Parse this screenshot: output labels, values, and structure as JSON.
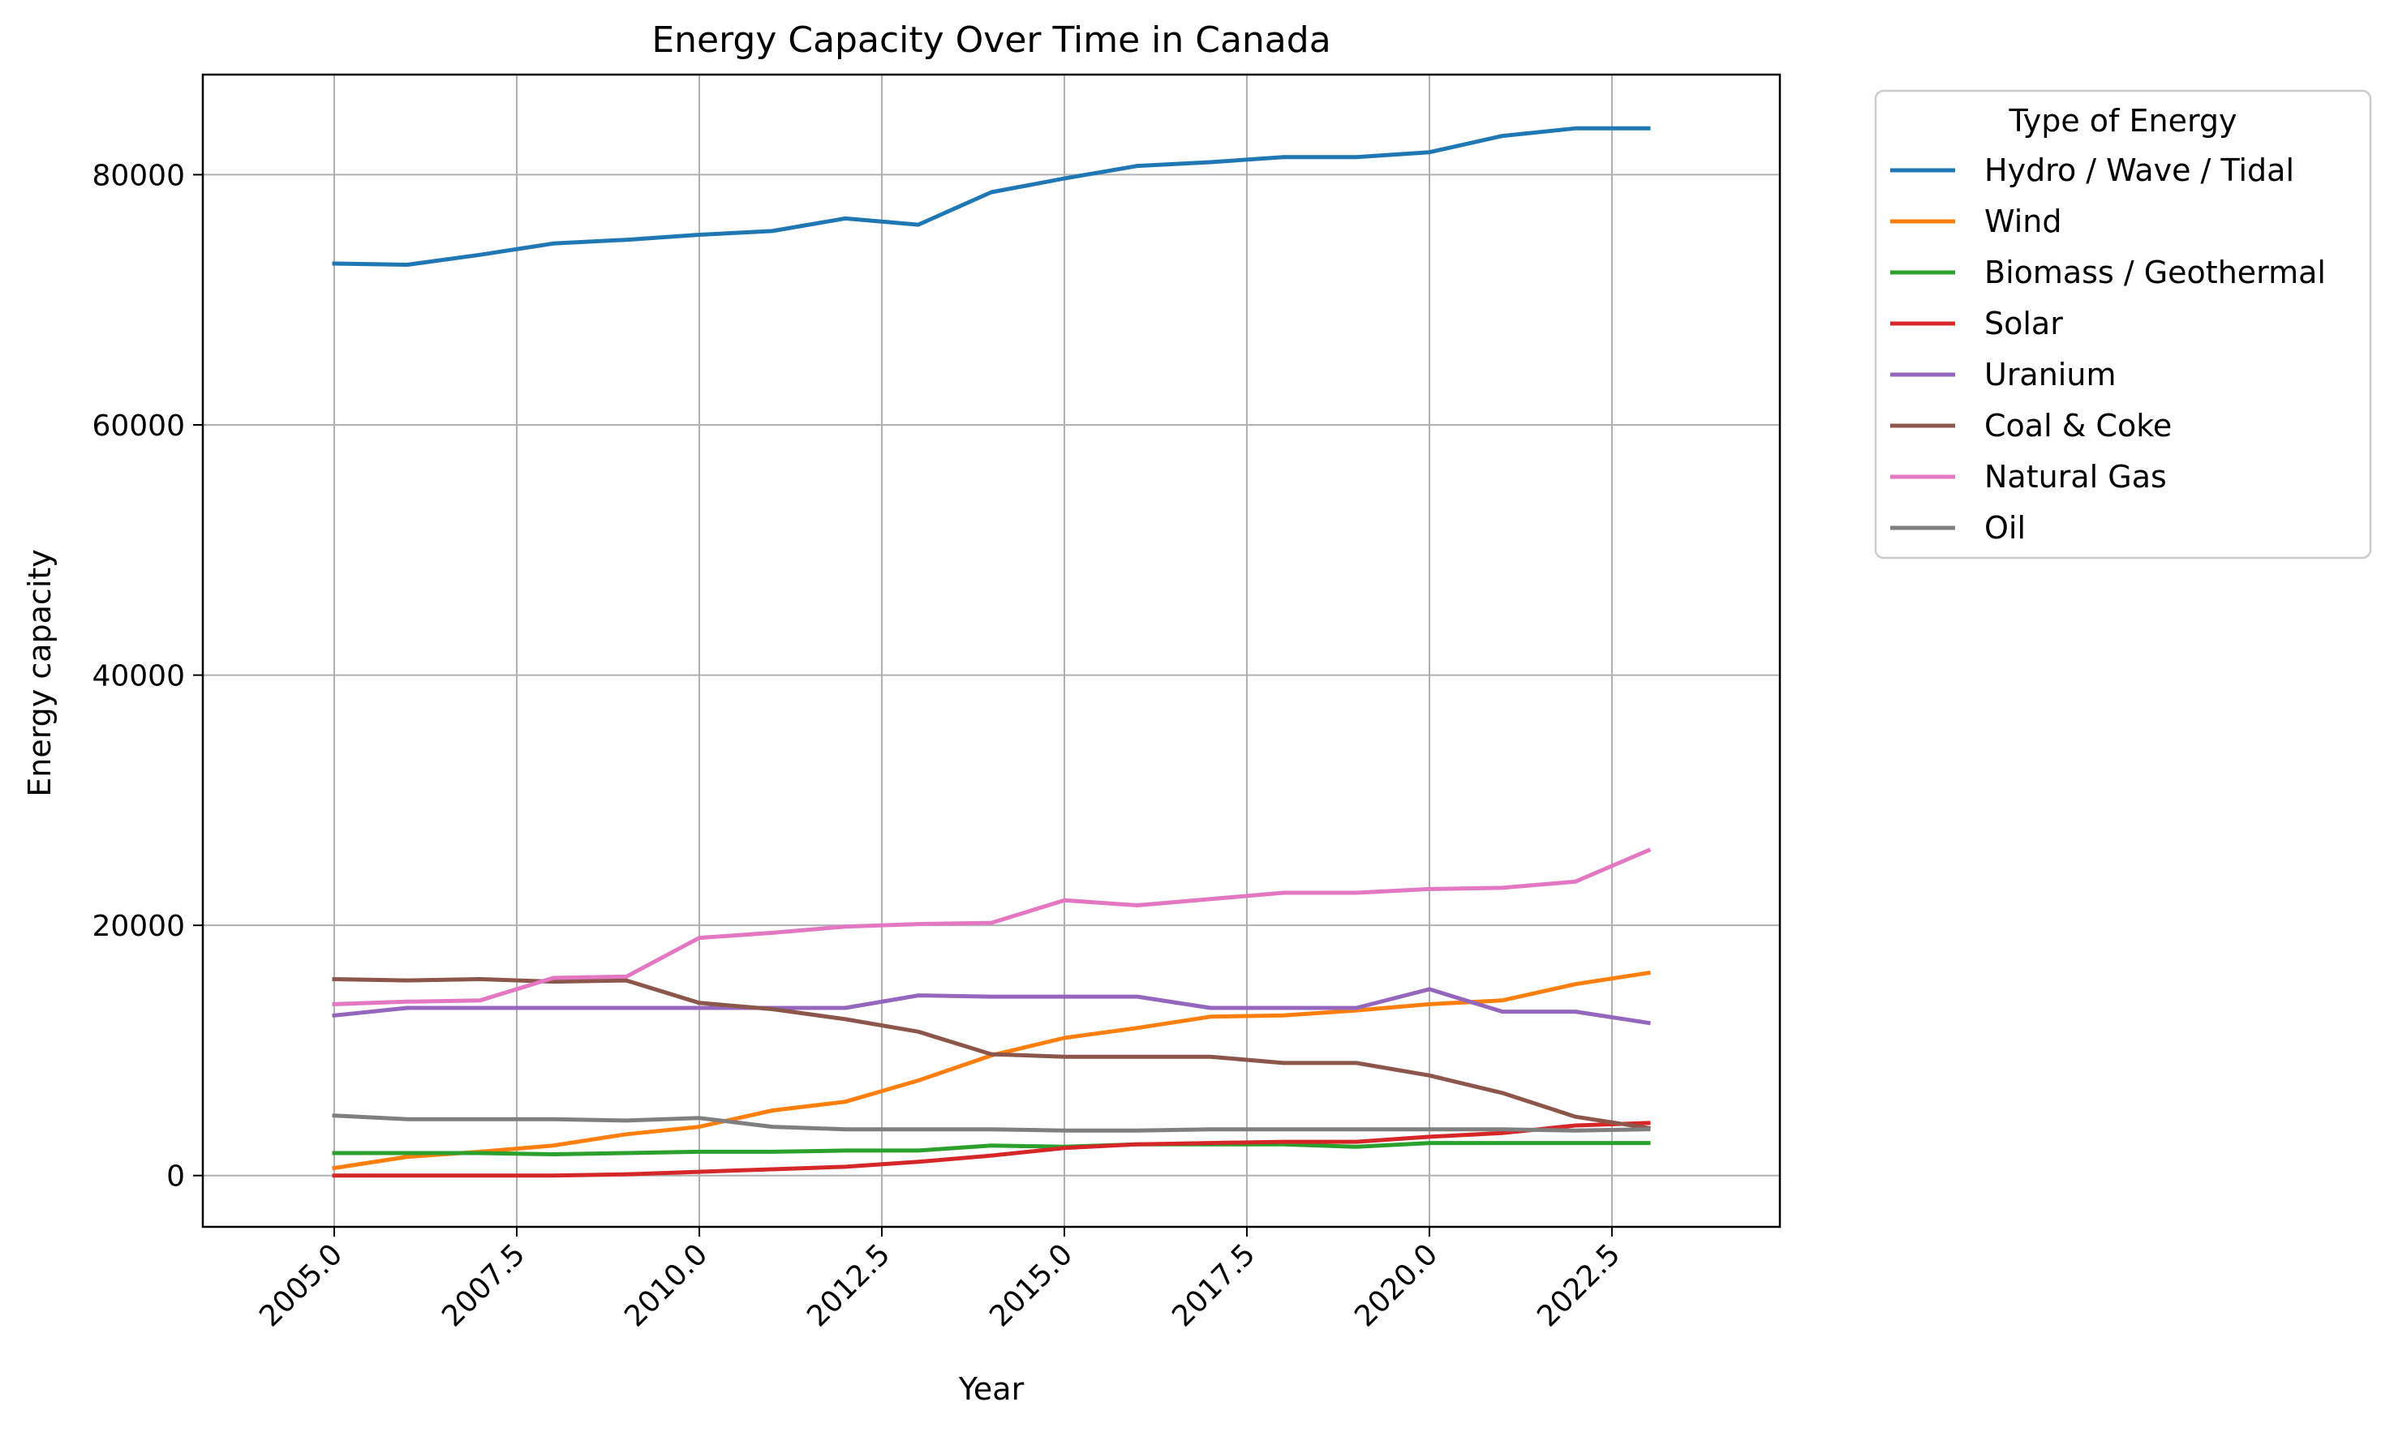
{
  "chart_data": {
    "type": "line",
    "title": "Energy Capacity Over Time in Canada",
    "xlabel": "Year",
    "ylabel": "Energy capacity",
    "xlim": [
      2003.2,
      2024.8
    ],
    "ylim": [
      -4100,
      88000
    ],
    "xticks": [
      2005.0,
      2007.5,
      2010.0,
      2012.5,
      2015.0,
      2017.5,
      2020.0,
      2022.5
    ],
    "xtick_labels": [
      "2005.0",
      "2007.5",
      "2010.0",
      "2012.5",
      "2015.0",
      "2017.5",
      "2020.0",
      "2022.5"
    ],
    "yticks": [
      0,
      20000,
      40000,
      60000,
      80000
    ],
    "ytick_labels": [
      "0",
      "20000",
      "40000",
      "60000",
      "80000"
    ],
    "grid": true,
    "legend_title": "Type of Energy",
    "legend_position": "outside-upper-right",
    "x": [
      2005,
      2006,
      2007,
      2008,
      2009,
      2010,
      2011,
      2012,
      2013,
      2014,
      2015,
      2016,
      2017,
      2018,
      2019,
      2020,
      2021,
      2022,
      2023
    ],
    "series": [
      {
        "name": "Hydro / Wave / Tidal",
        "color": "#1f77b4",
        "values": [
          72900,
          72800,
          73600,
          74500,
          74800,
          75200,
          75500,
          76500,
          76000,
          78600,
          79700,
          80700,
          81000,
          81400,
          81400,
          81800,
          83100,
          83700,
          83700
        ]
      },
      {
        "name": "Wind",
        "color": "#ff7f0e",
        "values": [
          600,
          1500,
          1900,
          2400,
          3300,
          3900,
          5200,
          5900,
          7600,
          9600,
          11000,
          11800,
          12700,
          12800,
          13200,
          13700,
          14000,
          15300,
          16200
        ]
      },
      {
        "name": "Biomass / Geothermal",
        "color": "#2ca02c",
        "values": [
          1800,
          1800,
          1800,
          1700,
          1800,
          1900,
          1900,
          2000,
          2000,
          2400,
          2300,
          2500,
          2500,
          2500,
          2300,
          2600,
          2600,
          2600,
          2600
        ]
      },
      {
        "name": "Solar",
        "color": "#d62728",
        "values": [
          0,
          0,
          0,
          0,
          100,
          300,
          500,
          700,
          1100,
          1600,
          2200,
          2500,
          2600,
          2700,
          2700,
          3100,
          3400,
          4000,
          4200
        ]
      },
      {
        "name": "Uranium",
        "color": "#9467bd",
        "values": [
          12800,
          13400,
          13400,
          13400,
          13400,
          13400,
          13400,
          13400,
          14400,
          14300,
          14300,
          14300,
          13400,
          13400,
          13400,
          14900,
          13100,
          13100,
          12200
        ]
      },
      {
        "name": "Coal & Coke",
        "color": "#8c564b",
        "values": [
          15700,
          15600,
          15700,
          15500,
          15600,
          13800,
          13300,
          12500,
          11500,
          9700,
          9500,
          9500,
          9500,
          9000,
          9000,
          8000,
          6600,
          4700,
          3800
        ]
      },
      {
        "name": "Natural Gas",
        "color": "#e377c2",
        "values": [
          13700,
          13900,
          14000,
          15800,
          15900,
          19000,
          19400,
          19900,
          20100,
          20200,
          22000,
          21600,
          22100,
          22600,
          22600,
          22900,
          23000,
          23500,
          26000
        ]
      },
      {
        "name": "Oil",
        "color": "#7f7f7f",
        "values": [
          4800,
          4500,
          4500,
          4500,
          4400,
          4600,
          3900,
          3700,
          3700,
          3700,
          3600,
          3600,
          3700,
          3700,
          3700,
          3700,
          3700,
          3600,
          3700
        ]
      }
    ]
  }
}
